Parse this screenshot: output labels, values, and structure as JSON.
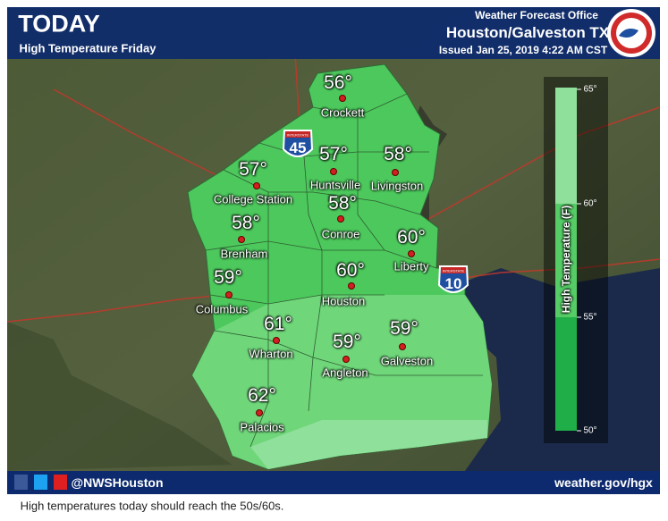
{
  "header": {
    "title": "TODAY",
    "subtitle": "High Temperature Friday",
    "office": "Weather Forecast Office",
    "location": "Houston/Galveston TX",
    "issued": "Issued Jan 25, 2019 4:22 AM CST"
  },
  "cities": [
    {
      "name": "Crockett",
      "temp": "56°"
    },
    {
      "name": "Huntsville",
      "temp": "57°"
    },
    {
      "name": "Livingston",
      "temp": "58°"
    },
    {
      "name": "College Station",
      "temp": "57°"
    },
    {
      "name": "Conroe",
      "temp": "58°"
    },
    {
      "name": "Brenham",
      "temp": "58°"
    },
    {
      "name": "Liberty",
      "temp": "60°"
    },
    {
      "name": "Columbus",
      "temp": "59°"
    },
    {
      "name": "Houston",
      "temp": "60°"
    },
    {
      "name": "Wharton",
      "temp": "61°"
    },
    {
      "name": "Galveston",
      "temp": "59°"
    },
    {
      "name": "Angleton",
      "temp": "59°"
    },
    {
      "name": "Palacios",
      "temp": "62°"
    }
  ],
  "highways": [
    {
      "label": "INTERSTATE",
      "number": "45"
    },
    {
      "label": "INTERSTATE",
      "number": "10"
    }
  ],
  "legend": {
    "title": "High Temperature (F)",
    "ticks": [
      "65°",
      "60°",
      "55°",
      "50°"
    ]
  },
  "footer": {
    "handle": "@NWSHouston",
    "url": "weather.gov/hgx"
  },
  "caption": "High temperatures today should reach the 50s/60s."
}
